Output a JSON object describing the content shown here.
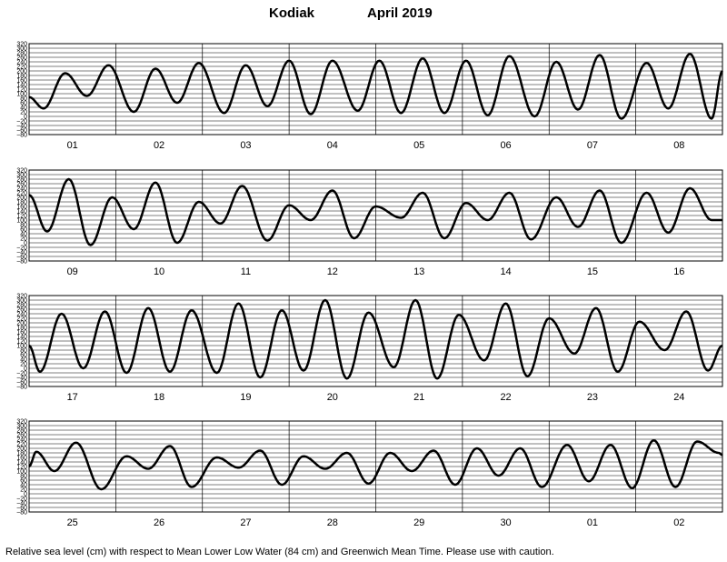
{
  "title": {
    "station": "Kodiak",
    "period": "April   2019"
  },
  "footnote": "Relative sea level (cm) with respect to Mean Lower Low Water (84 cm) and Greenwich Mean Time. Please use with caution.",
  "chart_data": {
    "type": "line",
    "units": "cm",
    "datum": "Mean Lower Low Water (84 cm)",
    "time_zone": "Greenwich Mean Time",
    "ylim": [
      -80,
      320
    ],
    "yticks": [
      320,
      300,
      280,
      260,
      240,
      220,
      200,
      180,
      160,
      140,
      120,
      100,
      80,
      60,
      40,
      20,
      0,
      -20,
      -40,
      -60,
      -80
    ],
    "ytick_labels": [
      "320",
      "300",
      "280",
      "260",
      "240",
      "220",
      "200",
      "180",
      "160",
      "140",
      "120",
      "100",
      "80",
      "60",
      "40",
      "20",
      "0",
      "−20",
      "−40",
      "−60",
      "−80"
    ],
    "grid": true,
    "line_color": "#000000",
    "panels": [
      {
        "days": [
          "01",
          "02",
          "03",
          "04",
          "05",
          "06",
          "07",
          "08"
        ],
        "series": [
          {
            "day": "01",
            "x": [
              0,
              4,
              10,
              16,
              22
            ],
            "y": [
              85,
              35,
              190,
              90,
              225
            ]
          },
          {
            "day": "02",
            "x": [
              5,
              11,
              17,
              23
            ],
            "y": [
              20,
              210,
              60,
              235
            ]
          },
          {
            "day": "03",
            "x": [
              6,
              12,
              18
            ],
            "y": [
              15,
              225,
              45
            ]
          },
          {
            "day": "04",
            "x": [
              0,
              6,
              12,
              19
            ],
            "y": [
              245,
              10,
              245,
              25
            ]
          },
          {
            "day": "05",
            "x": [
              1,
              7,
              13,
              19
            ],
            "y": [
              245,
              15,
              255,
              15
            ]
          },
          {
            "day": "06",
            "x": [
              1,
              7,
              13,
              20
            ],
            "y": [
              245,
              5,
              265,
              0
            ]
          },
          {
            "day": "07",
            "x": [
              2,
              8,
              14,
              20
            ],
            "y": [
              240,
              30,
              270,
              -10
            ]
          },
          {
            "day": "08",
            "x": [
              3,
              9,
              15,
              21,
              24
            ],
            "y": [
              235,
              35,
              275,
              -10,
              200
            ]
          }
        ]
      },
      {
        "days": [
          "09",
          "10",
          "11",
          "12",
          "13",
          "14",
          "15",
          "16"
        ],
        "series": [
          {
            "day": "09",
            "x": [
              0,
              5,
              11,
              17,
              23
            ],
            "y": [
              210,
              50,
              280,
              -10,
              200
            ]
          },
          {
            "day": "10",
            "x": [
              5,
              11,
              17,
              23
            ],
            "y": [
              60,
              265,
              0,
              180
            ]
          },
          {
            "day": "11",
            "x": [
              5,
              11,
              18
            ],
            "y": [
              85,
              250,
              10
            ]
          },
          {
            "day": "12",
            "x": [
              0,
              6,
              12,
              18
            ],
            "y": [
              165,
              100,
              230,
              20
            ]
          },
          {
            "day": "13",
            "x": [
              0,
              7,
              13,
              19
            ],
            "y": [
              160,
              110,
              220,
              20
            ]
          },
          {
            "day": "14",
            "x": [
              1,
              7,
              13,
              19
            ],
            "y": [
              175,
              100,
              220,
              15
            ]
          },
          {
            "day": "15",
            "x": [
              2,
              8,
              14,
              20
            ],
            "y": [
              200,
              70,
              230,
              0
            ]
          },
          {
            "day": "16",
            "x": [
              3,
              9,
              15,
              21,
              24
            ],
            "y": [
              220,
              45,
              240,
              100,
              100
            ]
          }
        ]
      },
      {
        "days": [
          "17",
          "18",
          "19",
          "20",
          "21",
          "22",
          "23",
          "24"
        ],
        "series": [
          {
            "day": "17",
            "x": [
              0,
              3,
              9,
              15,
              21
            ],
            "y": [
              100,
              -15,
              240,
              0,
              250
            ]
          },
          {
            "day": "18",
            "x": [
              3,
              9,
              15,
              21
            ],
            "y": [
              -20,
              265,
              -15,
              255
            ]
          },
          {
            "day": "19",
            "x": [
              4,
              10,
              16,
              22
            ],
            "y": [
              -20,
              285,
              -40,
              255
            ]
          },
          {
            "day": "20",
            "x": [
              4,
              10,
              16,
              22
            ],
            "y": [
              -10,
              300,
              -45,
              245
            ]
          },
          {
            "day": "21",
            "x": [
              5,
              11,
              17,
              23
            ],
            "y": [
              5,
              300,
              -45,
              235
            ]
          },
          {
            "day": "22",
            "x": [
              6,
              12,
              18
            ],
            "y": [
              35,
              285,
              -35
            ]
          },
          {
            "day": "23",
            "x": [
              0,
              7,
              13,
              19
            ],
            "y": [
              220,
              65,
              265,
              -15
            ]
          },
          {
            "day": "24",
            "x": [
              1,
              8,
              14,
              20,
              24
            ],
            "y": [
              205,
              80,
              250,
              -10,
              100
            ]
          }
        ]
      },
      {
        "days": [
          "25",
          "26",
          "27",
          "28",
          "29",
          "30",
          "01",
          "02"
        ],
        "series": [
          {
            "day": "25",
            "x": [
              0,
              2,
              7,
              13,
              20
            ],
            "y": [
              120,
              185,
              100,
              225,
              20
            ]
          },
          {
            "day": "26",
            "x": [
              3,
              9,
              15,
              21
            ],
            "y": [
              165,
              110,
              210,
              30
            ]
          },
          {
            "day": "27",
            "x": [
              4,
              10,
              16,
              22
            ],
            "y": [
              160,
              115,
              190,
              40
            ]
          },
          {
            "day": "28",
            "x": [
              4,
              10,
              16,
              22
            ],
            "y": [
              165,
              110,
              180,
              45
            ]
          },
          {
            "day": "29",
            "x": [
              4,
              10,
              16,
              22
            ],
            "y": [
              180,
              100,
              190,
              40
            ]
          },
          {
            "day": "30",
            "x": [
              4,
              10,
              16,
              22
            ],
            "y": [
              200,
              80,
              200,
              30
            ]
          },
          {
            "day": "01",
            "x": [
              5,
              11,
              17,
              23
            ],
            "y": [
              215,
              55,
              215,
              25
            ]
          },
          {
            "day": "02",
            "x": [
              5,
              11,
              17,
              23,
              24
            ],
            "y": [
              235,
              30,
              230,
              180,
              170
            ]
          }
        ]
      }
    ]
  }
}
